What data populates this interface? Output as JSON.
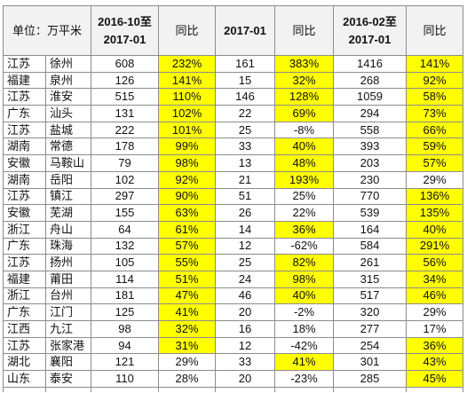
{
  "chart_data": {
    "type": "table",
    "highlight_color": "#ffff00",
    "header": {
      "unit": "单位：万平米",
      "columns": [
        {
          "line1": "2016-10至",
          "line2": "2017-01"
        },
        {
          "line1": "同比"
        },
        {
          "line1": "2017-01"
        },
        {
          "line1": "同比"
        },
        {
          "line1": "2016-02至",
          "line2": "2017-01"
        },
        {
          "line1": "同比"
        }
      ]
    },
    "rows": [
      {
        "province": "江苏",
        "city": "徐州",
        "values": [
          608,
          "232%",
          161,
          "383%",
          1416,
          "141%"
        ],
        "highlight": [
          1,
          3,
          5
        ]
      },
      {
        "province": "福建",
        "city": "泉州",
        "values": [
          126,
          "141%",
          15,
          "32%",
          268,
          "92%"
        ],
        "highlight": [
          1,
          3,
          5
        ]
      },
      {
        "province": "江苏",
        "city": "淮安",
        "values": [
          515,
          "110%",
          146,
          "128%",
          1059,
          "58%"
        ],
        "highlight": [
          1,
          3,
          5
        ]
      },
      {
        "province": "广东",
        "city": "汕头",
        "values": [
          131,
          "102%",
          22,
          "69%",
          294,
          "73%"
        ],
        "highlight": [
          1,
          3,
          5
        ]
      },
      {
        "province": "江苏",
        "city": "盐城",
        "values": [
          222,
          "101%",
          25,
          "-8%",
          558,
          "66%"
        ],
        "highlight": [
          1,
          5
        ]
      },
      {
        "province": "湖南",
        "city": "常德",
        "values": [
          178,
          "99%",
          33,
          "40%",
          393,
          "59%"
        ],
        "highlight": [
          1,
          3,
          5
        ]
      },
      {
        "province": "安徽",
        "city": "马鞍山",
        "values": [
          79,
          "98%",
          13,
          "48%",
          203,
          "57%"
        ],
        "highlight": [
          1,
          3,
          5
        ]
      },
      {
        "province": "湖南",
        "city": "岳阳",
        "values": [
          102,
          "92%",
          21,
          "193%",
          230,
          "29%"
        ],
        "highlight": [
          1,
          3
        ]
      },
      {
        "province": "江苏",
        "city": "镇江",
        "values": [
          297,
          "90%",
          51,
          "25%",
          770,
          "136%"
        ],
        "highlight": [
          1,
          5
        ]
      },
      {
        "province": "安徽",
        "city": "芜湖",
        "values": [
          155,
          "63%",
          26,
          "22%",
          539,
          "135%"
        ],
        "highlight": [
          1,
          5
        ]
      },
      {
        "province": "浙江",
        "city": "舟山",
        "values": [
          64,
          "61%",
          14,
          "36%",
          164,
          "40%"
        ],
        "highlight": [
          1,
          3,
          5
        ]
      },
      {
        "province": "广东",
        "city": "珠海",
        "values": [
          132,
          "57%",
          12,
          "-62%",
          584,
          "291%"
        ],
        "highlight": [
          1,
          5
        ]
      },
      {
        "province": "江苏",
        "city": "扬州",
        "values": [
          105,
          "55%",
          25,
          "82%",
          261,
          "56%"
        ],
        "highlight": [
          1,
          3,
          5
        ]
      },
      {
        "province": "福建",
        "city": "莆田",
        "values": [
          114,
          "51%",
          24,
          "98%",
          315,
          "34%"
        ],
        "highlight": [
          1,
          3,
          5
        ]
      },
      {
        "province": "浙江",
        "city": "台州",
        "values": [
          181,
          "47%",
          46,
          "40%",
          517,
          "46%"
        ],
        "highlight": [
          1,
          3,
          5
        ]
      },
      {
        "province": "广东",
        "city": "江门",
        "values": [
          125,
          "41%",
          20,
          "-2%",
          320,
          "29%"
        ],
        "highlight": [
          1
        ]
      },
      {
        "province": "江西",
        "city": "九江",
        "values": [
          98,
          "32%",
          16,
          "18%",
          277,
          "17%"
        ],
        "highlight": [
          1
        ]
      },
      {
        "province": "江苏",
        "city": "张家港",
        "values": [
          94,
          "31%",
          12,
          "-42%",
          254,
          "36%"
        ],
        "highlight": [
          1,
          5
        ]
      },
      {
        "province": "湖北",
        "city": "襄阳",
        "values": [
          121,
          "29%",
          33,
          "41%",
          301,
          "43%"
        ],
        "highlight": [
          3,
          5
        ]
      },
      {
        "province": "山东",
        "city": "泰安",
        "values": [
          110,
          "28%",
          20,
          "-23%",
          285,
          "45%"
        ],
        "highlight": [
          5
        ]
      }
    ]
  }
}
